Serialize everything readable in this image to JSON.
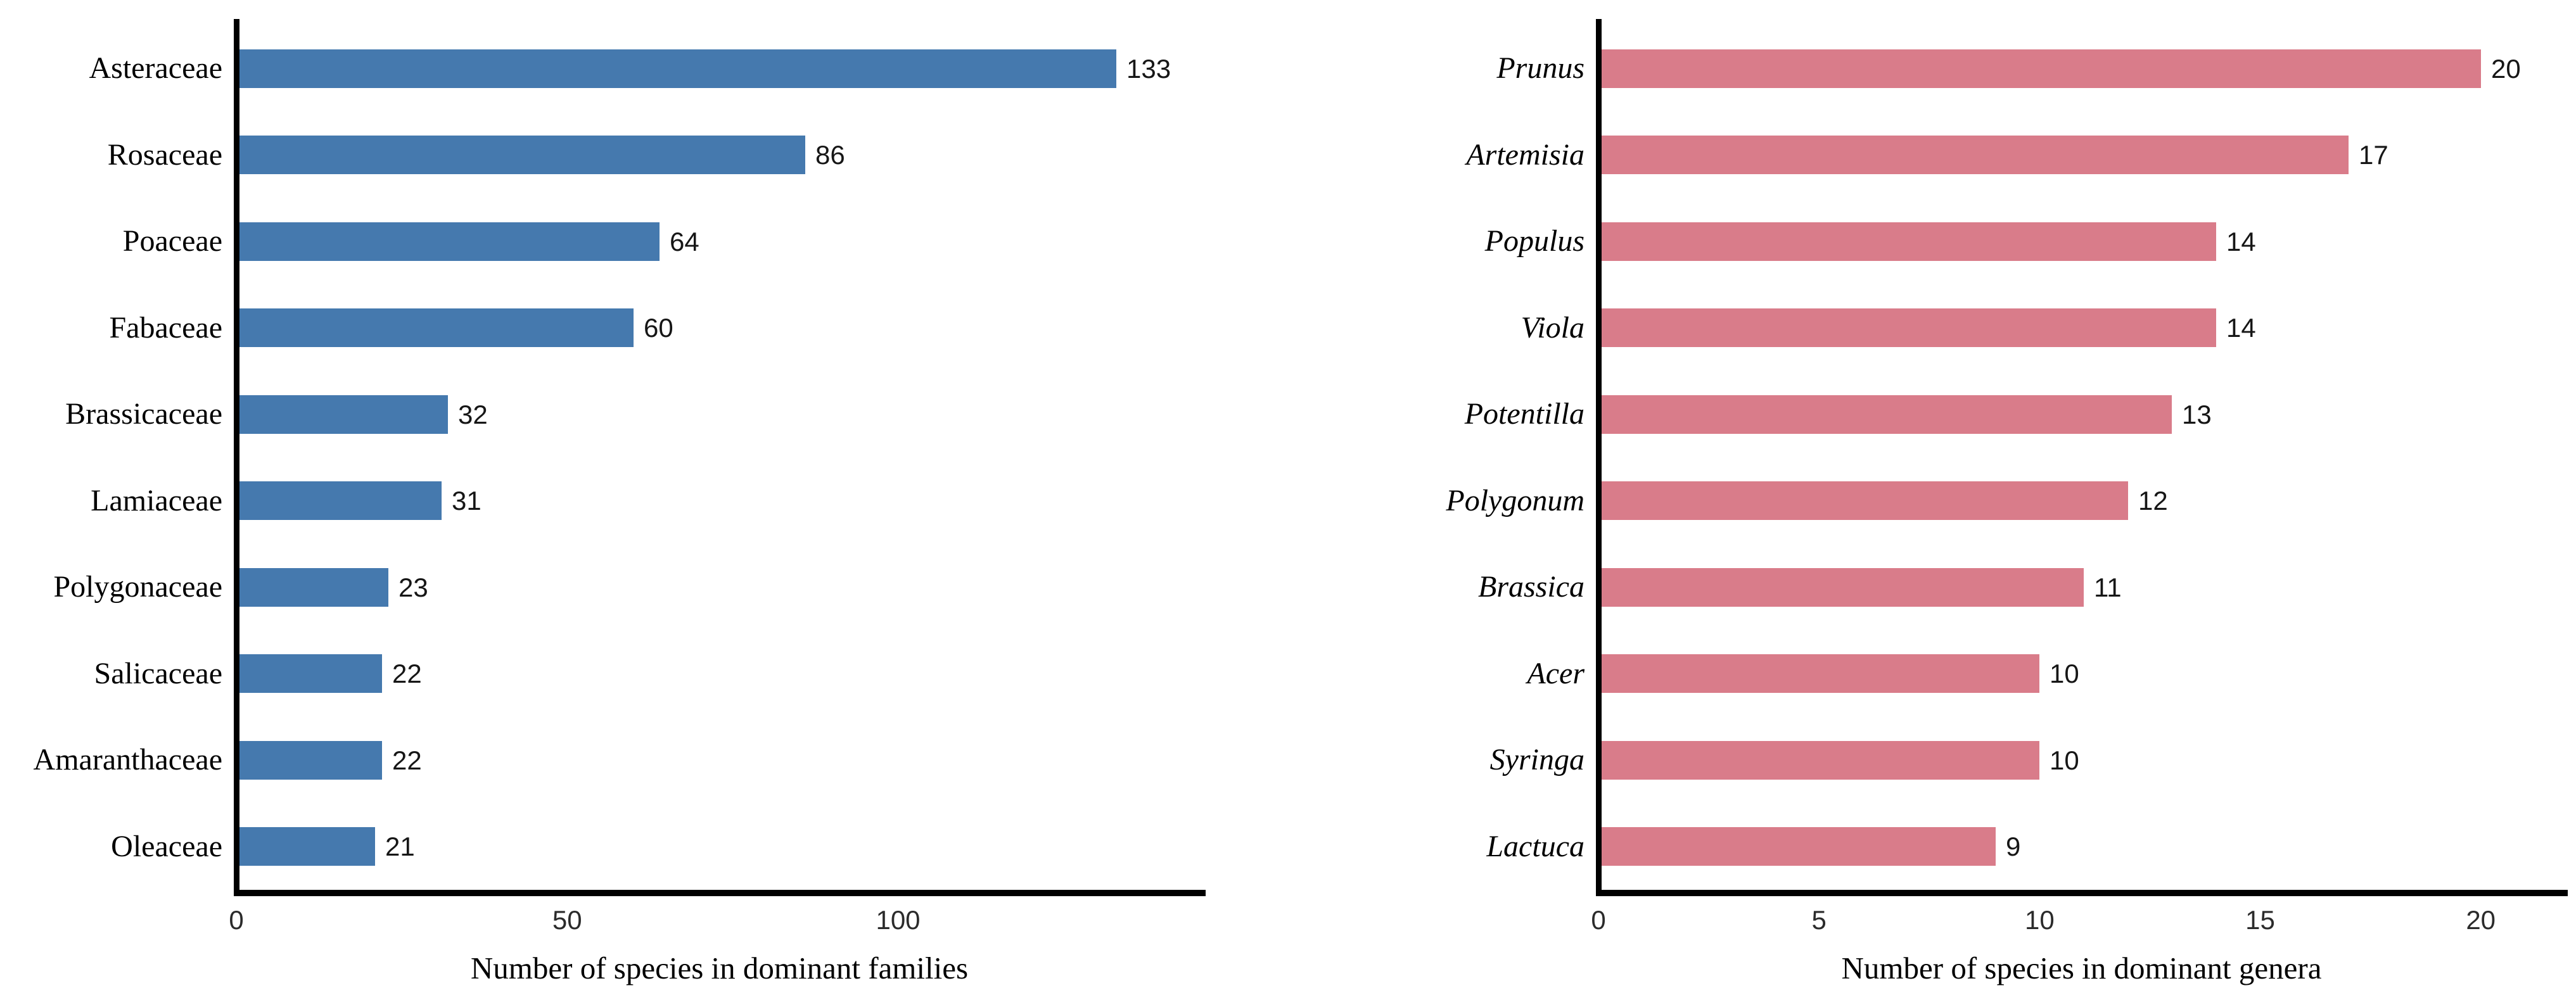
{
  "figure": {
    "background": "#ffffff"
  },
  "chart_data": [
    {
      "id": "dominant-families",
      "type": "bar",
      "orientation": "horizontal",
      "categories": [
        "Asteraceae",
        "Rosaceae",
        "Poaceae",
        "Fabaceae",
        "Brassicaceae",
        "Lamiaceae",
        "Polygonaceae",
        "Salicaceae",
        "Amaranthaceae",
        "Oleaceae"
      ],
      "values": [
        133,
        86,
        64,
        60,
        32,
        31,
        23,
        22,
        22,
        21
      ],
      "value_labels": [
        "133",
        "86",
        "64",
        "60",
        "32",
        "31",
        "23",
        "22",
        "22",
        "21"
      ],
      "xlabel": "Number of species in dominant families",
      "xticks": [
        0,
        50,
        100
      ],
      "xtick_labels": [
        "0",
        "50",
        "100"
      ],
      "xlim": [
        0,
        146
      ],
      "bar_color": "#4579AE",
      "axis_color": "#000000",
      "category_label_style": "normal",
      "grid": false,
      "legend": "none"
    },
    {
      "id": "dominant-genera",
      "type": "bar",
      "orientation": "horizontal",
      "categories": [
        "Prunus",
        "Artemisia",
        "Populus",
        "Viola",
        "Potentilla",
        "Polygonum",
        "Brassica",
        "Acer",
        "Syringa",
        "Lactuca"
      ],
      "values": [
        20,
        17,
        14,
        14,
        13,
        12,
        11,
        10,
        10,
        9
      ],
      "value_labels": [
        "20",
        "17",
        "14",
        "14",
        "13",
        "12",
        "11",
        "10",
        "10",
        "9"
      ],
      "xlabel": "Number of species in dominant genera",
      "xticks": [
        0,
        5,
        10,
        15,
        20
      ],
      "xtick_labels": [
        "0",
        "5",
        "10",
        "15",
        "20"
      ],
      "xlim": [
        0,
        21.9
      ],
      "bar_color": "#D97C8A",
      "axis_color": "#000000",
      "category_label_style": "italic",
      "grid": false,
      "legend": "none"
    }
  ]
}
